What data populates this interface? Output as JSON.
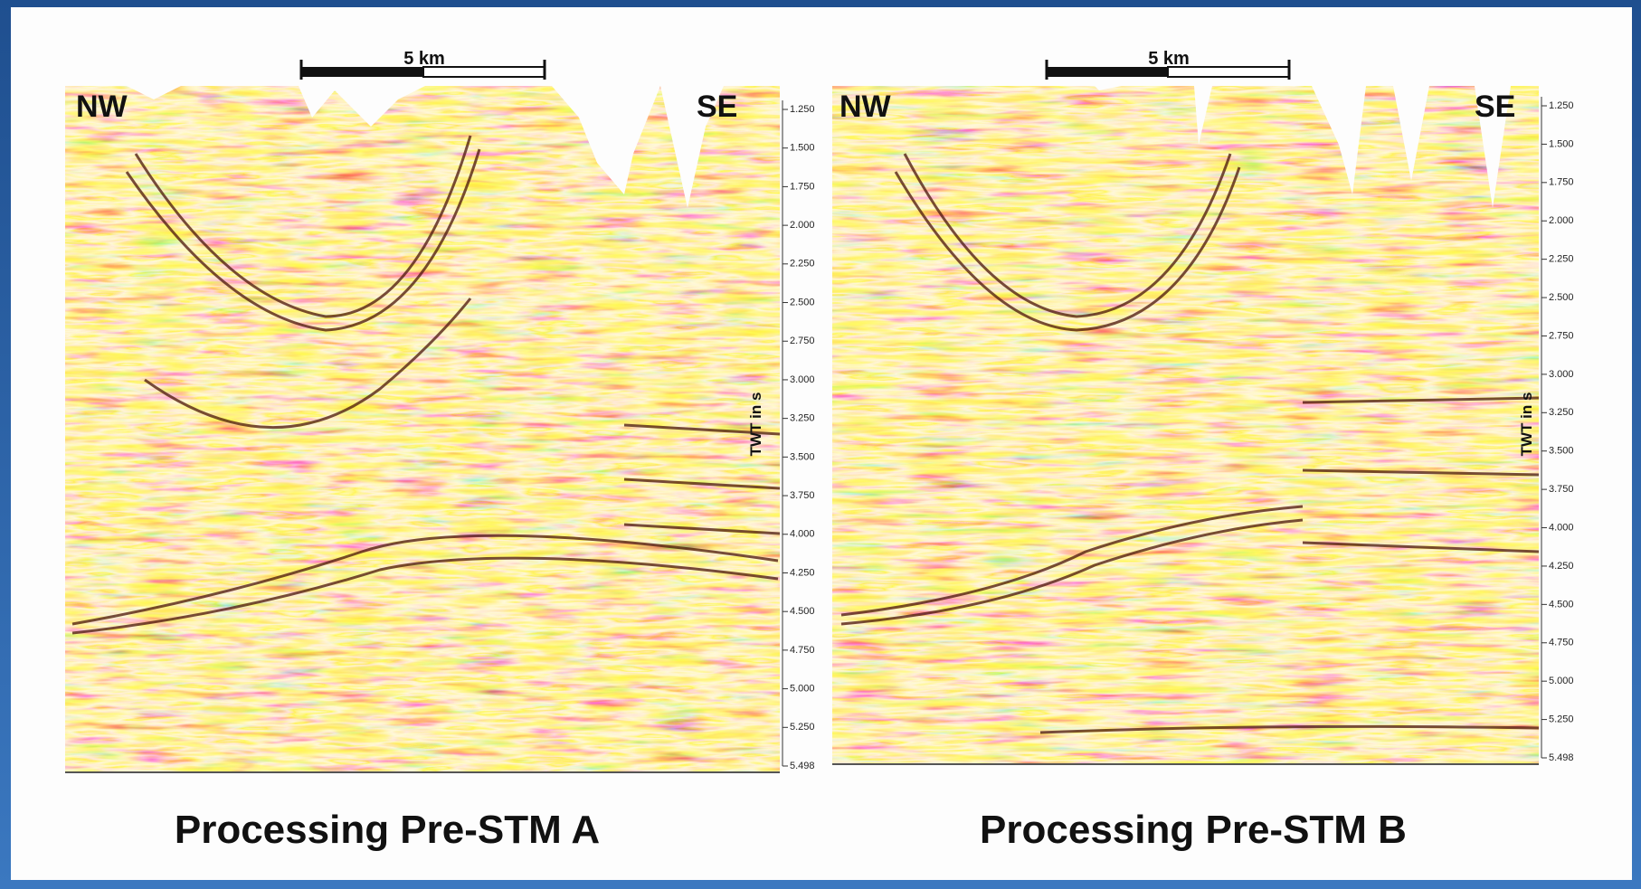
{
  "panels": [
    {
      "scale_label": "5  km",
      "left_label": "NW",
      "right_label": "SE",
      "axis_label": "TWT in s",
      "ticks": [
        "1.250",
        "1.500",
        "1.750",
        "2.000",
        "2.250",
        "2.500",
        "2.750",
        "3.000",
        "3.250",
        "3.500",
        "3.750",
        "4.000",
        "4.250",
        "4.500",
        "4.750",
        "5.000",
        "5.250",
        "5.498"
      ],
      "caption": "Processing Pre-STM A"
    },
    {
      "scale_label": "5  km",
      "left_label": "NW",
      "right_label": "SE",
      "axis_label": "TWT in s",
      "ticks": [
        "1.250",
        "1.500",
        "1.750",
        "2.000",
        "2.250",
        "2.500",
        "2.750",
        "3.000",
        "3.250",
        "3.500",
        "3.750",
        "4.000",
        "4.250",
        "4.500",
        "4.750",
        "5.000",
        "5.250",
        "5.498"
      ],
      "caption": "Processing Pre-STM B"
    }
  ]
}
